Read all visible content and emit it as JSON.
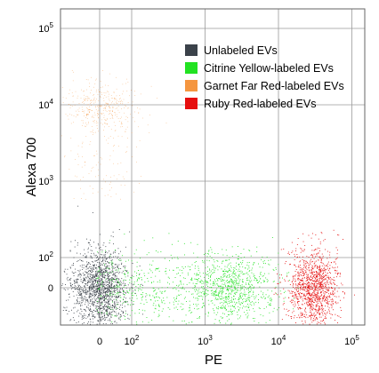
{
  "chart_data": {
    "type": "scatter",
    "xlabel": "PE",
    "ylabel": "Alexa 700",
    "x_scale": "biexponential",
    "y_scale": "biexponential",
    "x_ticks": [
      {
        "value": "0",
        "base": "0",
        "exp": ""
      },
      {
        "value": "100",
        "base": "10",
        "exp": "2"
      },
      {
        "value": "1000",
        "base": "10",
        "exp": "3"
      },
      {
        "value": "10000",
        "base": "10",
        "exp": "4"
      },
      {
        "value": "100000",
        "base": "10",
        "exp": "5"
      }
    ],
    "y_ticks": [
      {
        "value": "0",
        "base": "0",
        "exp": ""
      },
      {
        "value": "100",
        "base": "10",
        "exp": "2"
      },
      {
        "value": "1000",
        "base": "10",
        "exp": "3"
      },
      {
        "value": "10000",
        "base": "10",
        "exp": "4"
      },
      {
        "value": "100000",
        "base": "10",
        "exp": "5"
      }
    ],
    "grid": true,
    "legend_position": "top-right",
    "series": [
      {
        "name": "Unlabeled EVs",
        "color": "#3b424a",
        "center_pe": 0,
        "center_alexa700": 0
      },
      {
        "name": "Citrine Yellow-labeled EVs",
        "color": "#22e222",
        "center_pe": 2500,
        "center_alexa700": 0
      },
      {
        "name": "Garnet Far Red-labeled EVs",
        "color": "#f59640",
        "center_pe": 0,
        "center_alexa700": 10000
      },
      {
        "name": "Ruby Red-labeled EVs",
        "color": "#e60e0e",
        "center_pe": 30000,
        "center_alexa700": 0
      }
    ]
  }
}
